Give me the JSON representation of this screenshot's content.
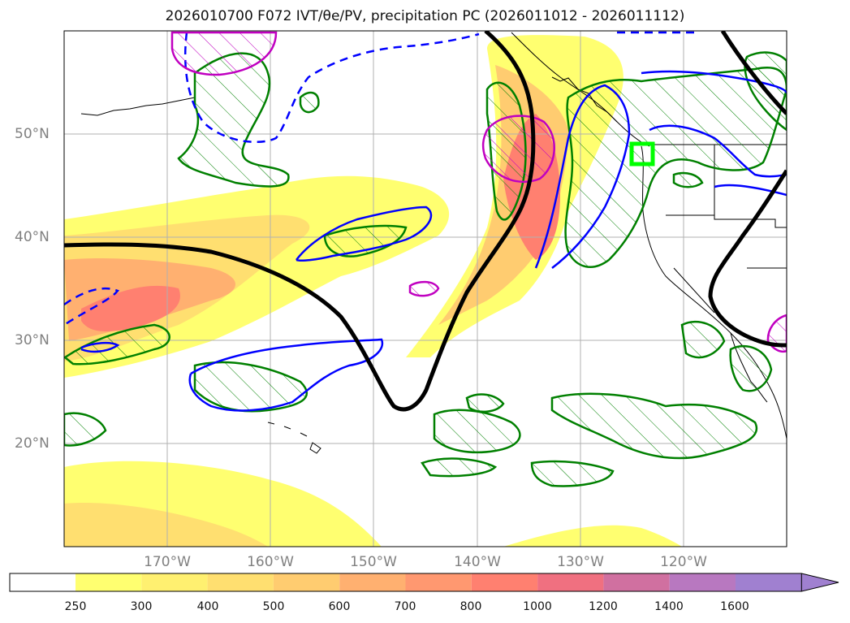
{
  "title": "2026010700 F072 IVT/θe/PV, precipitation PC (2026011012 - 2026011112)",
  "lat_labels": [
    "50°N",
    "40°N",
    "30°N",
    "20°N"
  ],
  "lon_labels": [
    "170°W",
    "160°W",
    "150°W",
    "140°W",
    "130°W",
    "120°W"
  ],
  "colorbar": {
    "ticks": [
      "250",
      "300",
      "400",
      "500",
      "600",
      "700",
      "800",
      "1000",
      "1200",
      "1400",
      "1600"
    ],
    "colors": [
      "#ffffff",
      "#ffff70",
      "#fff070",
      "#ffdf70",
      "#ffcc70",
      "#ffb070",
      "#ff9870",
      "#ff8070",
      "#f07080",
      "#d070a0",
      "#b878c0",
      "#a080d0"
    ]
  },
  "map": {
    "extent_lon": [
      -180,
      -110
    ],
    "extent_lat": [
      10,
      60
    ],
    "highlight_color": "#00ff00",
    "contour_colors": {
      "theta_e": "#000000",
      "pv_positive": "#0000ff",
      "pv_negative": "#0000ff",
      "precip_pc": "#008000",
      "pv_high": "#c000c0"
    }
  }
}
